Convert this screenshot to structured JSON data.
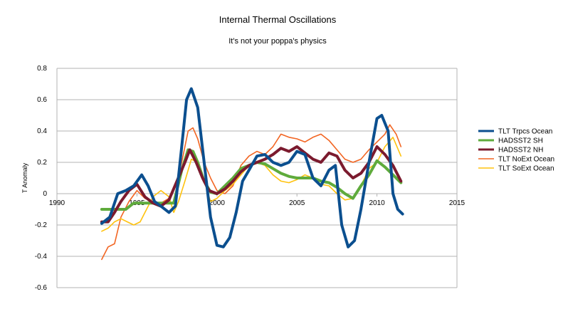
{
  "chart_data": {
    "type": "line",
    "title": "Internal Thermal Oscillations",
    "subtitle": "It's not your poppa's physics",
    "xlabel": "",
    "ylabel": "T Anomaly",
    "xlim": [
      1990,
      2015
    ],
    "ylim": [
      -0.6,
      0.8
    ],
    "xticks": [
      1990,
      1995,
      2000,
      2005,
      2010,
      2015
    ],
    "yticks": [
      -0.6,
      -0.4,
      -0.2,
      0,
      0.2,
      0.4,
      0.6,
      0.8
    ],
    "ytick_labels": [
      "-0.6",
      "-0.4",
      "-0.2",
      "0",
      "0.2",
      "0.4",
      "0.6",
      "0.8"
    ],
    "grid": "horizontal",
    "legend_position": "right",
    "series": [
      {
        "name": "TLT NoExt Ocean",
        "color": "#f26522",
        "width": 1.6,
        "points": [
          [
            1992.8,
            -0.42
          ],
          [
            1993.2,
            -0.34
          ],
          [
            1993.6,
            -0.32
          ],
          [
            1994.0,
            -0.15
          ],
          [
            1994.5,
            -0.05
          ],
          [
            1995.0,
            0.02
          ],
          [
            1995.5,
            -0.03
          ],
          [
            1996.0,
            -0.05
          ],
          [
            1996.5,
            -0.06
          ],
          [
            1997.0,
            -0.03
          ],
          [
            1997.4,
            0.05
          ],
          [
            1997.8,
            0.2
          ],
          [
            1998.2,
            0.4
          ],
          [
            1998.5,
            0.42
          ],
          [
            1998.8,
            0.35
          ],
          [
            1999.2,
            0.2
          ],
          [
            1999.6,
            0.1
          ],
          [
            2000.0,
            0.02
          ],
          [
            2000.5,
            0.0
          ],
          [
            2001.0,
            0.05
          ],
          [
            2001.5,
            0.18
          ],
          [
            2002.0,
            0.24
          ],
          [
            2002.5,
            0.27
          ],
          [
            2003.0,
            0.25
          ],
          [
            2003.5,
            0.3
          ],
          [
            2004.0,
            0.38
          ],
          [
            2004.5,
            0.36
          ],
          [
            2005.0,
            0.35
          ],
          [
            2005.5,
            0.33
          ],
          [
            2006.0,
            0.36
          ],
          [
            2006.5,
            0.38
          ],
          [
            2007.0,
            0.34
          ],
          [
            2007.5,
            0.28
          ],
          [
            2008.0,
            0.22
          ],
          [
            2008.5,
            0.2
          ],
          [
            2009.0,
            0.22
          ],
          [
            2009.5,
            0.28
          ],
          [
            2010.0,
            0.33
          ],
          [
            2010.5,
            0.38
          ],
          [
            2010.8,
            0.44
          ],
          [
            2011.2,
            0.38
          ],
          [
            2011.5,
            0.3
          ]
        ]
      },
      {
        "name": "TLT SoExt Ocean",
        "color": "#ffc20e",
        "width": 1.6,
        "points": [
          [
            1992.8,
            -0.24
          ],
          [
            1993.2,
            -0.22
          ],
          [
            1993.6,
            -0.18
          ],
          [
            1994.0,
            -0.16
          ],
          [
            1994.4,
            -0.18
          ],
          [
            1994.8,
            -0.2
          ],
          [
            1995.2,
            -0.18
          ],
          [
            1995.6,
            -0.1
          ],
          [
            1996.0,
            -0.02
          ],
          [
            1996.5,
            0.02
          ],
          [
            1997.0,
            -0.02
          ],
          [
            1997.3,
            -0.12
          ],
          [
            1997.6,
            -0.05
          ],
          [
            1998.0,
            0.08
          ],
          [
            1998.4,
            0.22
          ],
          [
            1998.8,
            0.2
          ],
          [
            1999.2,
            0.08
          ],
          [
            1999.6,
            -0.05
          ],
          [
            2000.0,
            -0.03
          ],
          [
            2000.5,
            0.02
          ],
          [
            2001.0,
            0.06
          ],
          [
            2001.5,
            0.12
          ],
          [
            2002.0,
            0.18
          ],
          [
            2002.5,
            0.2
          ],
          [
            2003.0,
            0.18
          ],
          [
            2003.5,
            0.12
          ],
          [
            2004.0,
            0.08
          ],
          [
            2004.5,
            0.07
          ],
          [
            2005.0,
            0.09
          ],
          [
            2005.5,
            0.12
          ],
          [
            2006.0,
            0.1
          ],
          [
            2006.5,
            0.06
          ],
          [
            2007.0,
            0.05
          ],
          [
            2007.5,
            0.0
          ],
          [
            2008.0,
            -0.04
          ],
          [
            2008.5,
            -0.03
          ],
          [
            2009.0,
            0.05
          ],
          [
            2009.5,
            0.16
          ],
          [
            2010.0,
            0.2
          ],
          [
            2010.5,
            0.3
          ],
          [
            2011.0,
            0.36
          ],
          [
            2011.5,
            0.24
          ]
        ]
      },
      {
        "name": "HADSST2 SH",
        "color": "#5fab3c",
        "width": 4,
        "points": [
          [
            1992.8,
            -0.1
          ],
          [
            1993.3,
            -0.1
          ],
          [
            1993.8,
            -0.1
          ],
          [
            1994.3,
            -0.1
          ],
          [
            1994.8,
            -0.06
          ],
          [
            1995.3,
            -0.06
          ],
          [
            1995.8,
            -0.06
          ],
          [
            1996.3,
            -0.06
          ],
          [
            1996.8,
            -0.06
          ],
          [
            1997.3,
            -0.06
          ],
          [
            1997.8,
            0.15
          ],
          [
            1998.2,
            0.28
          ],
          [
            1998.5,
            0.27
          ],
          [
            1998.8,
            0.2
          ],
          [
            1999.2,
            0.08
          ],
          [
            1999.6,
            0.01
          ],
          [
            2000.0,
            0.0
          ],
          [
            2000.5,
            0.05
          ],
          [
            2001.0,
            0.1
          ],
          [
            2001.5,
            0.16
          ],
          [
            2002.0,
            0.18
          ],
          [
            2002.5,
            0.2
          ],
          [
            2003.0,
            0.19
          ],
          [
            2003.5,
            0.16
          ],
          [
            2004.0,
            0.13
          ],
          [
            2004.5,
            0.11
          ],
          [
            2005.0,
            0.1
          ],
          [
            2005.5,
            0.1
          ],
          [
            2006.0,
            0.1
          ],
          [
            2006.5,
            0.08
          ],
          [
            2007.0,
            0.07
          ],
          [
            2007.5,
            0.04
          ],
          [
            2008.0,
            0.0
          ],
          [
            2008.5,
            -0.03
          ],
          [
            2009.0,
            0.05
          ],
          [
            2009.5,
            0.12
          ],
          [
            2010.0,
            0.21
          ],
          [
            2010.5,
            0.17
          ],
          [
            2011.0,
            0.12
          ],
          [
            2011.5,
            0.07
          ]
        ]
      },
      {
        "name": "HADSST2 NH",
        "color": "#7b1a2e",
        "width": 4,
        "points": [
          [
            1992.8,
            -0.18
          ],
          [
            1993.2,
            -0.18
          ],
          [
            1993.6,
            -0.12
          ],
          [
            1994.0,
            -0.05
          ],
          [
            1994.5,
            0.02
          ],
          [
            1995.0,
            0.06
          ],
          [
            1995.5,
            -0.02
          ],
          [
            1996.0,
            -0.06
          ],
          [
            1996.5,
            -0.08
          ],
          [
            1997.0,
            -0.04
          ],
          [
            1997.5,
            0.08
          ],
          [
            1998.0,
            0.2
          ],
          [
            1998.3,
            0.28
          ],
          [
            1998.7,
            0.2
          ],
          [
            1999.1,
            0.1
          ],
          [
            1999.5,
            0.02
          ],
          [
            2000.0,
            0.0
          ],
          [
            2000.5,
            0.03
          ],
          [
            2001.0,
            0.08
          ],
          [
            2001.5,
            0.14
          ],
          [
            2002.0,
            0.18
          ],
          [
            2002.5,
            0.2
          ],
          [
            2003.0,
            0.22
          ],
          [
            2003.5,
            0.25
          ],
          [
            2004.0,
            0.29
          ],
          [
            2004.5,
            0.27
          ],
          [
            2005.0,
            0.3
          ],
          [
            2005.5,
            0.26
          ],
          [
            2006.0,
            0.22
          ],
          [
            2006.5,
            0.2
          ],
          [
            2007.0,
            0.26
          ],
          [
            2007.5,
            0.24
          ],
          [
            2008.0,
            0.15
          ],
          [
            2008.5,
            0.1
          ],
          [
            2009.0,
            0.13
          ],
          [
            2009.5,
            0.2
          ],
          [
            2010.0,
            0.3
          ],
          [
            2010.5,
            0.25
          ],
          [
            2011.0,
            0.18
          ],
          [
            2011.5,
            0.08
          ]
        ]
      },
      {
        "name": "TLT Trpcs Ocean",
        "color": "#0b4f8f",
        "width": 4,
        "points": [
          [
            1992.8,
            -0.19
          ],
          [
            1993.3,
            -0.15
          ],
          [
            1993.8,
            0.0
          ],
          [
            1994.3,
            0.02
          ],
          [
            1994.8,
            0.05
          ],
          [
            1995.3,
            0.12
          ],
          [
            1995.7,
            0.05
          ],
          [
            1996.1,
            -0.05
          ],
          [
            1996.5,
            -0.08
          ],
          [
            1997.0,
            -0.12
          ],
          [
            1997.4,
            -0.08
          ],
          [
            1997.8,
            0.3
          ],
          [
            1998.1,
            0.6
          ],
          [
            1998.4,
            0.67
          ],
          [
            1998.8,
            0.55
          ],
          [
            1999.2,
            0.2
          ],
          [
            1999.6,
            -0.15
          ],
          [
            2000.0,
            -0.33
          ],
          [
            2000.4,
            -0.34
          ],
          [
            2000.8,
            -0.28
          ],
          [
            2001.2,
            -0.12
          ],
          [
            2001.6,
            0.08
          ],
          [
            2002.0,
            0.15
          ],
          [
            2002.5,
            0.24
          ],
          [
            2003.0,
            0.25
          ],
          [
            2003.5,
            0.2
          ],
          [
            2004.0,
            0.18
          ],
          [
            2004.5,
            0.2
          ],
          [
            2005.0,
            0.27
          ],
          [
            2005.5,
            0.25
          ],
          [
            2006.0,
            0.1
          ],
          [
            2006.5,
            0.05
          ],
          [
            2007.0,
            0.15
          ],
          [
            2007.4,
            0.18
          ],
          [
            2007.8,
            -0.2
          ],
          [
            2008.2,
            -0.34
          ],
          [
            2008.6,
            -0.3
          ],
          [
            2009.0,
            -0.1
          ],
          [
            2009.5,
            0.2
          ],
          [
            2010.0,
            0.48
          ],
          [
            2010.3,
            0.5
          ],
          [
            2010.7,
            0.4
          ],
          [
            2011.0,
            0.0
          ],
          [
            2011.3,
            -0.1
          ],
          [
            2011.6,
            -0.13
          ]
        ]
      }
    ],
    "legend_order": [
      "TLT Trpcs Ocean",
      "HADSST2 SH",
      "HADSST2 NH",
      "TLT NoExt Ocean",
      "TLT SoExt Ocean"
    ]
  }
}
